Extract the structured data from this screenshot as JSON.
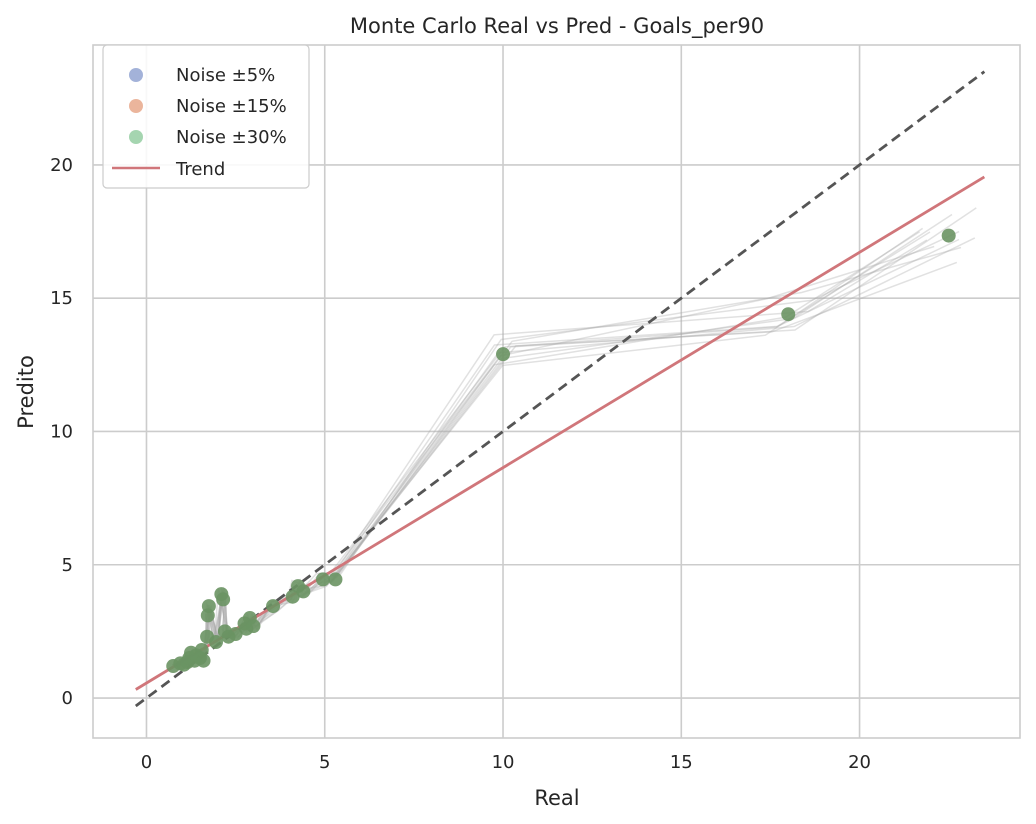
{
  "chart_data": {
    "type": "scatter",
    "title": "Monte Carlo Real vs Pred - Goals_per90",
    "xlabel": "Real",
    "ylabel": "Predito",
    "xlim": [
      -1.5,
      24.5
    ],
    "ylim": [
      -1.5,
      24.5
    ],
    "xticks": [
      0,
      5,
      10,
      15,
      20
    ],
    "yticks": [
      0,
      5,
      10,
      15,
      20
    ],
    "grid": true,
    "legend_position": "top-left",
    "colors": {
      "noise_5": "#8c9fcf",
      "noise_15": "#e6a283",
      "noise_30": "#8fca9c",
      "trend": "#d0767a",
      "identity": "#555555",
      "sim_lines": "#a8a8a8",
      "points": "#6a9463",
      "grid": "#cccccc"
    },
    "series": [
      {
        "name": "Noise ±5%",
        "kind": "scatter"
      },
      {
        "name": "Noise ±15%",
        "kind": "scatter"
      },
      {
        "name": "Noise ±30%",
        "kind": "scatter"
      },
      {
        "name": "Trend",
        "kind": "line"
      }
    ],
    "points": [
      {
        "x": 0.75,
        "y": 1.2
      },
      {
        "x": 0.95,
        "y": 1.3
      },
      {
        "x": 1.05,
        "y": 1.25
      },
      {
        "x": 1.15,
        "y": 1.35
      },
      {
        "x": 1.2,
        "y": 1.5
      },
      {
        "x": 1.25,
        "y": 1.7
      },
      {
        "x": 1.35,
        "y": 1.4
      },
      {
        "x": 1.4,
        "y": 1.6
      },
      {
        "x": 1.5,
        "y": 1.5
      },
      {
        "x": 1.55,
        "y": 1.8
      },
      {
        "x": 1.6,
        "y": 1.4
      },
      {
        "x": 1.7,
        "y": 2.3
      },
      {
        "x": 1.72,
        "y": 3.1
      },
      {
        "x": 1.75,
        "y": 3.45
      },
      {
        "x": 1.95,
        "y": 2.1
      },
      {
        "x": 2.1,
        "y": 3.9
      },
      {
        "x": 2.15,
        "y": 3.7
      },
      {
        "x": 2.2,
        "y": 2.5
      },
      {
        "x": 2.3,
        "y": 2.3
      },
      {
        "x": 2.5,
        "y": 2.4
      },
      {
        "x": 2.75,
        "y": 2.8
      },
      {
        "x": 2.8,
        "y": 2.6
      },
      {
        "x": 2.9,
        "y": 3.0
      },
      {
        "x": 3.0,
        "y": 2.7
      },
      {
        "x": 3.55,
        "y": 3.45
      },
      {
        "x": 4.1,
        "y": 3.8
      },
      {
        "x": 4.25,
        "y": 4.2
      },
      {
        "x": 4.4,
        "y": 4.0
      },
      {
        "x": 4.95,
        "y": 4.45
      },
      {
        "x": 5.3,
        "y": 4.45
      },
      {
        "x": 10.0,
        "y": 12.9
      },
      {
        "x": 18.0,
        "y": 14.4
      },
      {
        "x": 22.5,
        "y": 17.35
      }
    ],
    "identity_line": {
      "x": [
        -0.3,
        23.5
      ],
      "y": [
        -0.3,
        23.5
      ]
    },
    "trend_line": {
      "x": [
        -0.3,
        23.5
      ],
      "y": [
        0.32,
        19.55
      ]
    },
    "simulation_line_count": 12
  }
}
